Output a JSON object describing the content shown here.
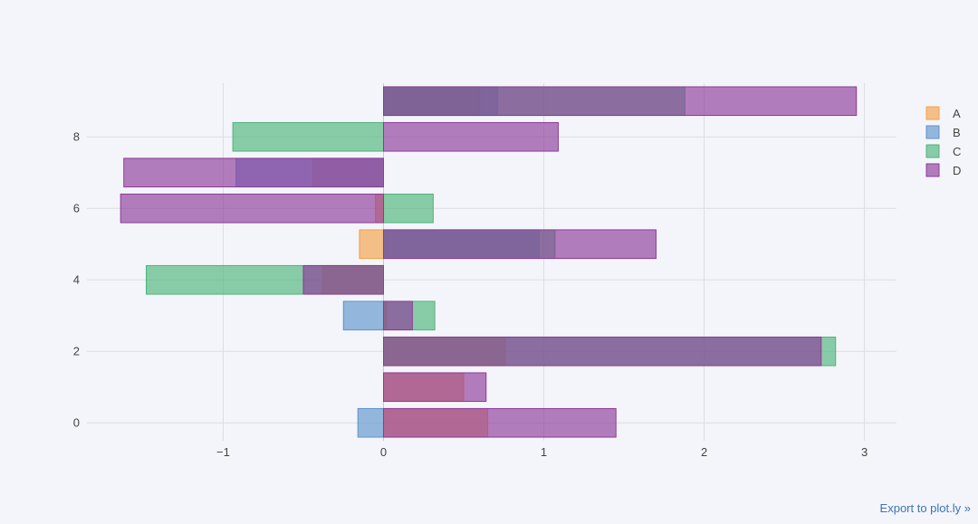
{
  "export_link": "Export to plot.ly »",
  "colors": {
    "background": "#f4f5fa",
    "grid": "#dcdde3",
    "zero_line": "#c8c9cf",
    "tick_text": "#444444",
    "A": "#f5a04a",
    "B": "#5f93cd",
    "C": "#4db57a",
    "D": "#8e3a9b"
  },
  "chart_data": {
    "type": "bar",
    "orientation": "horizontal",
    "barmode": "overlay",
    "bar_opacity": 0.65,
    "title": "",
    "xlabel": "",
    "ylabel": "",
    "xlim": [
      -1.85,
      3.2
    ],
    "ylim": [
      -0.5,
      9.5
    ],
    "grid": true,
    "legend_position": "top-right",
    "x_ticks": [
      -1,
      0,
      1,
      2,
      3
    ],
    "x_tick_labels": [
      "−1",
      "0",
      "1",
      "2",
      "3"
    ],
    "y_ticks": [
      0,
      2,
      4,
      6,
      8
    ],
    "y_tick_labels": [
      "0",
      "2",
      "4",
      "6",
      "8"
    ],
    "categories": [
      0,
      1,
      2,
      3,
      4,
      5,
      6,
      7,
      8,
      9
    ],
    "series": [
      {
        "name": "A",
        "color": "#f5a04a",
        "values": [
          0.65,
          0.5,
          0.76,
          0.02,
          -0.38,
          -0.15,
          -0.05,
          -0.44,
          0.0,
          0.6
        ]
      },
      {
        "name": "B",
        "color": "#5f93cd",
        "values": [
          -0.16,
          0.0,
          0.0,
          -0.25,
          0.0,
          0.97,
          0.0,
          -0.92,
          0.0,
          0.71
        ]
      },
      {
        "name": "C",
        "color": "#4db57a",
        "values": [
          0.0,
          0.0,
          2.82,
          0.32,
          -1.48,
          1.07,
          0.31,
          0.0,
          -0.94,
          1.88
        ]
      },
      {
        "name": "D",
        "color": "#8e3a9b",
        "values": [
          1.45,
          0.64,
          2.73,
          0.18,
          -0.5,
          1.7,
          -1.64,
          -1.62,
          1.09,
          2.95
        ]
      }
    ]
  }
}
